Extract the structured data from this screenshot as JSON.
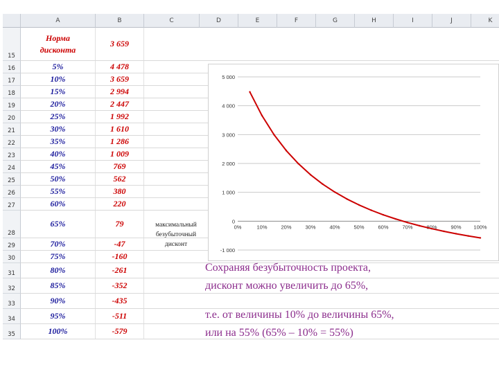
{
  "columns": [
    "A",
    "B",
    "C",
    "D",
    "E",
    "F",
    "G",
    "H",
    "I",
    "J",
    "K"
  ],
  "header_row": {
    "num": "15",
    "label": "Норма дисконта",
    "value": "3 659"
  },
  "rows": [
    {
      "num": "16",
      "rate": "5%",
      "npv": "4 478"
    },
    {
      "num": "17",
      "rate": "10%",
      "npv": "3 659"
    },
    {
      "num": "18",
      "rate": "15%",
      "npv": "2 994"
    },
    {
      "num": "19",
      "rate": "20%",
      "npv": "2 447"
    },
    {
      "num": "20",
      "rate": "25%",
      "npv": "1 992"
    },
    {
      "num": "21",
      "rate": "30%",
      "npv": "1 610"
    },
    {
      "num": "22",
      "rate": "35%",
      "npv": "1 286"
    },
    {
      "num": "23",
      "rate": "40%",
      "npv": "1 009"
    },
    {
      "num": "24",
      "rate": "45%",
      "npv": "769"
    },
    {
      "num": "25",
      "rate": "50%",
      "npv": "562"
    },
    {
      "num": "26",
      "rate": "55%",
      "npv": "380"
    },
    {
      "num": "27",
      "rate": "60%",
      "npv": "220"
    },
    {
      "num": "28",
      "rate": "65%",
      "npv": "79"
    },
    {
      "num": "29",
      "rate": "70%",
      "npv": "-47"
    },
    {
      "num": "30",
      "rate": "75%",
      "npv": "-160"
    },
    {
      "num": "31",
      "rate": "80%",
      "npv": "-261"
    },
    {
      "num": "32",
      "rate": "85%",
      "npv": "-352"
    },
    {
      "num": "33",
      "rate": "90%",
      "npv": "-435"
    },
    {
      "num": "34",
      "rate": "95%",
      "npv": "-511"
    },
    {
      "num": "35",
      "rate": "100%",
      "npv": "-579"
    }
  ],
  "note_row28": "максимальный безубыточный дисконт",
  "caption": {
    "line1": "Сохраняя безубыточность проекта,",
    "line2": "дисконт можно увеличить до 65%,",
    "line3": "т.е. от величины 10% до величины 65%,",
    "line4": "или на 55%       (65% – 10% = 55%)"
  },
  "colors": {
    "caption": "#8b2c8c",
    "rate": "#1a1a9c",
    "npv": "#cc0000",
    "line": "#cc0000"
  },
  "chart_data": {
    "type": "line",
    "x": [
      5,
      10,
      15,
      20,
      25,
      30,
      35,
      40,
      45,
      50,
      55,
      60,
      65,
      70,
      75,
      80,
      85,
      90,
      95,
      100
    ],
    "series": [
      {
        "values": [
          4478,
          3659,
          2994,
          2447,
          1992,
          1610,
          1286,
          1009,
          769,
          562,
          380,
          220,
          79,
          -47,
          -160,
          -261,
          -352,
          -435,
          -511,
          -579
        ]
      }
    ],
    "x_ticks": [
      "0%",
      "10%",
      "20%",
      "30%",
      "40%",
      "50%",
      "60%",
      "70%",
      "80%",
      "90%",
      "100%"
    ],
    "y_ticks": [
      "5 000",
      "4 000",
      "3 000",
      "2 000",
      "1 000",
      "0",
      "-1 000"
    ],
    "xlim": [
      0,
      100
    ],
    "ylim": [
      -1000,
      5000
    ],
    "grid": true,
    "legend": "none"
  }
}
